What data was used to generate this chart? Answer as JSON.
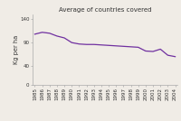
{
  "title": "Average of countries covered",
  "ylabel": "Kg per ha",
  "years": [
    1985,
    1986,
    1987,
    1988,
    1989,
    1990,
    1991,
    1992,
    1993,
    1994,
    1995,
    1996,
    1997,
    1998,
    1999,
    2000,
    2001,
    2002,
    2003,
    2004
  ],
  "values": [
    108,
    112,
    110,
    104,
    100,
    90,
    87,
    86,
    86,
    85,
    84,
    83,
    82,
    81,
    80,
    72,
    71,
    76,
    63,
    60
  ],
  "line_color": "#7030A0",
  "line_width": 0.9,
  "ylim": [
    0,
    150
  ],
  "yticks": [
    0,
    40,
    90,
    140
  ],
  "bg_color": "#f0ece6",
  "title_fontsize": 5.0,
  "label_fontsize": 4.8,
  "tick_fontsize": 4.0
}
